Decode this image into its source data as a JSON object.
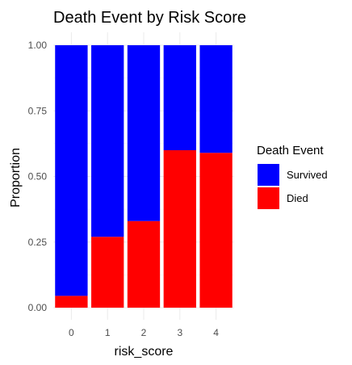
{
  "chart_data": {
    "type": "bar",
    "stacked": true,
    "title": "Death Event by Risk Score",
    "xlabel": "risk_score",
    "ylabel": "Proportion",
    "categories": [
      "0",
      "1",
      "2",
      "3",
      "4"
    ],
    "ylim": [
      0,
      1
    ],
    "yticks": [
      "0.00",
      "0.25",
      "0.50",
      "0.75",
      "1.00"
    ],
    "grid": true,
    "legend": {
      "title": "Death Event",
      "position": "right"
    },
    "series": [
      {
        "name": "Died",
        "color": "#FF0000",
        "values": [
          0.045,
          0.27,
          0.33,
          0.6,
          0.59
        ]
      },
      {
        "name": "Survived",
        "color": "#0000FF",
        "values": [
          0.955,
          0.73,
          0.67,
          0.4,
          0.41
        ]
      }
    ],
    "legend_order": [
      "Survived",
      "Died"
    ]
  }
}
